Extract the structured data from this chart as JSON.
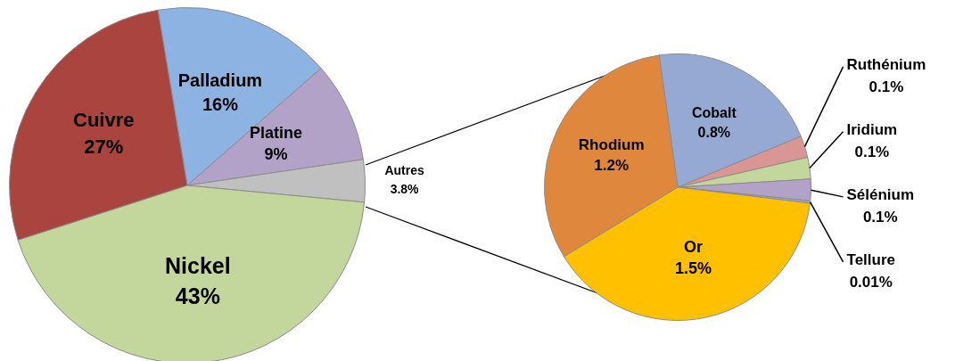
{
  "chart_data": [
    {
      "type": "pie",
      "categories": [
        "Palladium",
        "Platine",
        "Autres",
        "Nickel",
        "Cuivre"
      ],
      "values": [
        16,
        9,
        3.8,
        43,
        27
      ],
      "colors": [
        "#8db3e2",
        "#b3a2c7",
        "#c0c0c0",
        "#c3d69b",
        "#a9443f"
      ],
      "value_labels": [
        "16%",
        "9%",
        "3.8%",
        "43%",
        "27%"
      ]
    },
    {
      "type": "pie",
      "categories": [
        "Cobalt",
        "Ruthénium",
        "Iridium",
        "Sélénium",
        "Tellure",
        "Or",
        "Rhodium"
      ],
      "values": [
        0.8,
        0.1,
        0.1,
        0.1,
        0.01,
        1.5,
        1.2
      ],
      "colors": [
        "#95a9d3",
        "#d99694",
        "#c3d69b",
        "#b3a2c7",
        "#8eb4e3",
        "#ffc000",
        "#e0873e"
      ],
      "value_labels": [
        "0.8%",
        "0.1%",
        "0.1%",
        "0.1%",
        "0.01%",
        "1.5%",
        "1.2%"
      ]
    }
  ]
}
